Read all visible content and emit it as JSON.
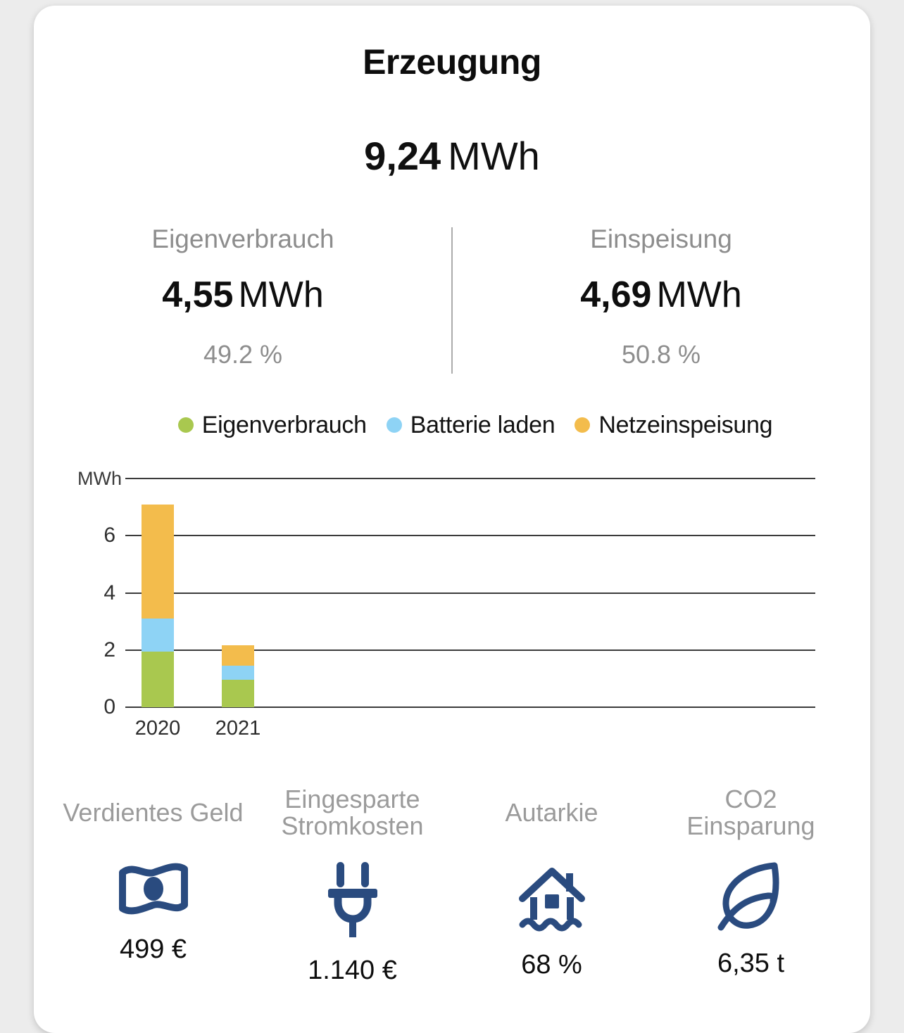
{
  "card": {
    "title": "Erzeugung"
  },
  "total": {
    "value": "9,24",
    "unit": "MWh"
  },
  "split": {
    "left": {
      "label": "Eigenverbrauch",
      "value": "4,55",
      "unit": "MWh",
      "percent": "49.2 %"
    },
    "right": {
      "label": "Einspeisung",
      "value": "4,69",
      "unit": "MWh",
      "percent": "50.8 %"
    }
  },
  "legend": [
    {
      "label": "Eigenverbrauch",
      "color": "#a9c84f"
    },
    {
      "label": "Batterie laden",
      "color": "#8ed3f5"
    },
    {
      "label": "Netzeinspeisung",
      "color": "#f3bc4c"
    }
  ],
  "chart_data": {
    "type": "bar",
    "stacked": true,
    "categories": [
      "2020",
      "2021"
    ],
    "series": [
      {
        "name": "Eigenverbrauch",
        "color": "#a9c84f",
        "values": [
          1.95,
          0.97
        ]
      },
      {
        "name": "Batterie laden",
        "color": "#8ed3f5",
        "values": [
          1.15,
          0.48
        ]
      },
      {
        "name": "Netzeinspeisung",
        "color": "#f3bc4c",
        "values": [
          3.98,
          0.71
        ]
      }
    ],
    "title": "Erzeugung",
    "xlabel": "",
    "ylabel": "MWh",
    "ylim": [
      0,
      8
    ],
    "ytick_step": 2,
    "yticks_labeled": [
      0,
      2,
      4,
      6
    ],
    "grid": true,
    "legend_position": "top"
  },
  "stats": [
    {
      "label": "Verdientes Geld",
      "icon": "money-icon",
      "value": "499 €"
    },
    {
      "label": "Eingesparte\nStromkosten",
      "icon": "plug-icon",
      "value": "1.140 €"
    },
    {
      "label": "Autarkie",
      "icon": "house-icon",
      "value": "68 %"
    },
    {
      "label": "CO2\nEinsparung",
      "icon": "leaf-icon",
      "value": "6,35 t"
    }
  ],
  "colors": {
    "accent_green": "#a9c84f",
    "accent_blue": "#8ed3f5",
    "accent_orange": "#f3bc4c",
    "icon_navy": "#2a4b7f",
    "background": "#ececec",
    "card": "#ffffff",
    "muted_text": "#8d8d8d"
  }
}
